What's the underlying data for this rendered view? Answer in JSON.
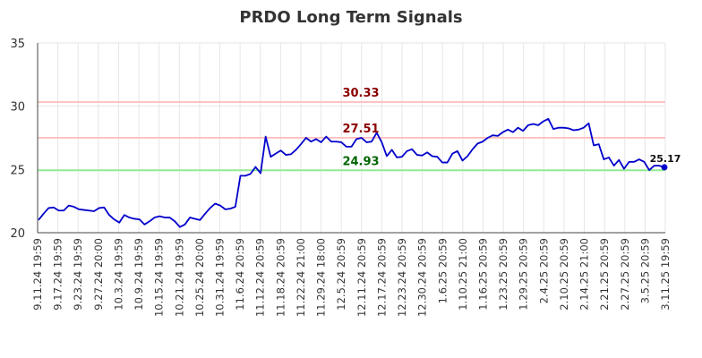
{
  "chart_data": {
    "type": "line",
    "title": "PRDO Long Term Signals",
    "ylim": [
      20,
      35
    ],
    "yticks": [
      20,
      25,
      30,
      35
    ],
    "grid": true,
    "x_tick_labels": [
      "9.11.24 19:59",
      "9.17.24 19:59",
      "9.23.24 19:59",
      "9.27.24 20:00",
      "10.3.24 19:59",
      "10.9.24 19:59",
      "10.15.24 19:59",
      "10.21.24 19:59",
      "10.25.24 20:00",
      "10.31.24 19:59",
      "11.6.24 20:59",
      "11.12.24 20:59",
      "11.18.24 20:59",
      "11.22.24 21:00",
      "11.29.24 18:00",
      "12.5.24 20:59",
      "12.11.24 20:59",
      "12.17.24 20:59",
      "12.23.24 20:59",
      "12.30.24 20:59",
      "1.6.25 20:59",
      "1.10.25 21:00",
      "1.16.25 20:59",
      "1.23.25 20:59",
      "1.29.25 20:59",
      "2.4.25 20:59",
      "2.10.25 20:59",
      "2.14.25 21:00",
      "2.21.25 20:59",
      "2.27.25 20:59",
      "3.5.25 20:59",
      "3.11.25 19:59"
    ],
    "series": [
      {
        "color": "#0000cc",
        "values": [
          21.0,
          21.5,
          21.95,
          22.0,
          21.75,
          21.75,
          22.15,
          22.05,
          21.85,
          21.8,
          21.75,
          21.7,
          21.95,
          22.0,
          21.4,
          21.05,
          20.8,
          21.4,
          21.2,
          21.1,
          21.05,
          20.65,
          20.9,
          21.2,
          21.3,
          21.2,
          21.2,
          20.9,
          20.45,
          20.65,
          21.2,
          21.1,
          21.0,
          21.5,
          21.95,
          22.3,
          22.15,
          21.85,
          21.9,
          22.05,
          24.5,
          24.5,
          24.65,
          25.2,
          24.7,
          27.6,
          26.0,
          26.25,
          26.5,
          26.15,
          26.2,
          26.55,
          27.0,
          27.5,
          27.2,
          27.4,
          27.15,
          27.6,
          27.2,
          27.2,
          27.15,
          26.8,
          26.8,
          27.4,
          27.5,
          27.15,
          27.2,
          27.9,
          27.15,
          26.05,
          26.55,
          25.95,
          26.0,
          26.45,
          26.6,
          26.15,
          26.1,
          26.35,
          26.05,
          26.0,
          25.55,
          25.55,
          26.25,
          26.45,
          25.7,
          26.05,
          26.6,
          27.05,
          27.2,
          27.5,
          27.7,
          27.65,
          27.95,
          28.15,
          27.95,
          28.3,
          28.05,
          28.5,
          28.6,
          28.5,
          28.8,
          29.0,
          28.2,
          28.3,
          28.3,
          28.25,
          28.1,
          28.15,
          28.3,
          28.65,
          26.9,
          27.0,
          25.8,
          25.95,
          25.3,
          25.75,
          25.05,
          25.6,
          25.6,
          25.8,
          25.6,
          24.95,
          25.3,
          25.3,
          25.17
        ]
      }
    ],
    "hlines": [
      {
        "value": 30.33,
        "label": "30.33",
        "color": "#ffbbbb",
        "label_color": "#8b0000"
      },
      {
        "value": 27.51,
        "label": "27.51",
        "color": "#ffbbbb",
        "label_color": "#8b0000"
      },
      {
        "value": 24.93,
        "label": "24.93",
        "color": "#90ee90",
        "label_color": "#006400"
      }
    ],
    "last_value": {
      "value": 25.17,
      "label": "25.17"
    }
  }
}
